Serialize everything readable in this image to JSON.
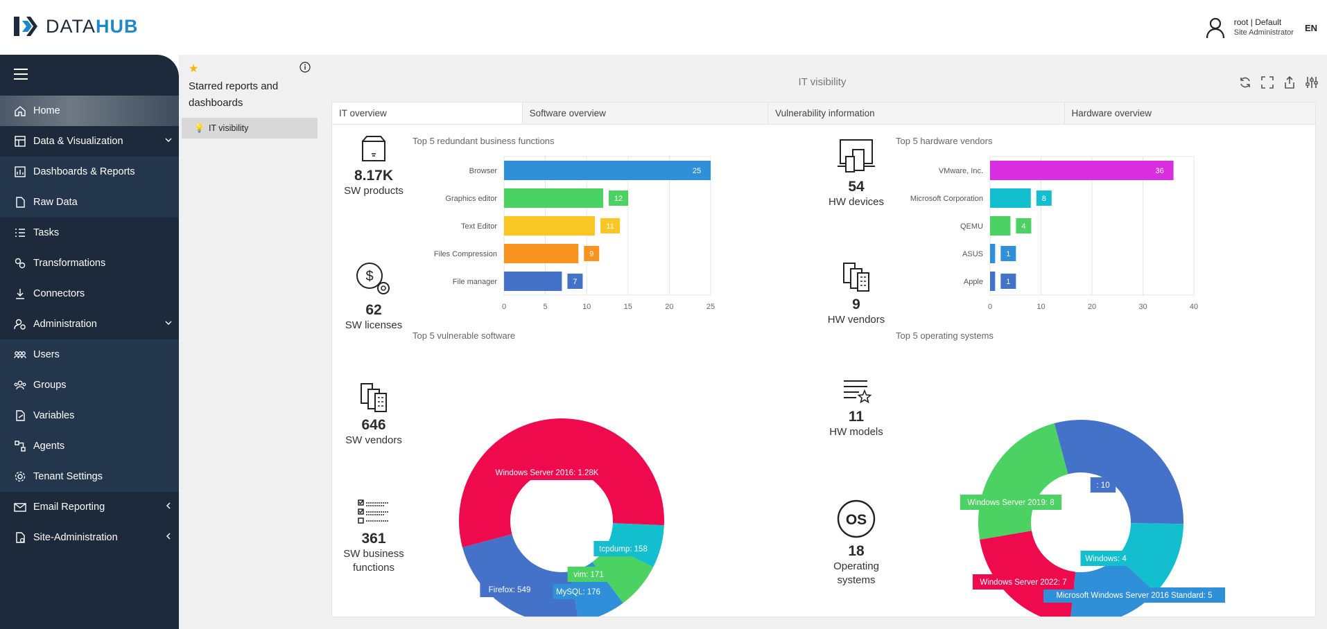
{
  "topbar": {
    "logo_text_a": "DATA",
    "logo_text_b": "HUB",
    "user_name": "root",
    "user_tenant": "| Default",
    "user_role": "Site Administrator",
    "language": "EN"
  },
  "sidebar": {
    "items": [
      {
        "label": "Home",
        "icon": "home-icon"
      },
      {
        "label": "Data & Visualization",
        "icon": "database-icon",
        "chevron": "down"
      },
      {
        "label": "Dashboards & Reports",
        "icon": "dashboard-icon"
      },
      {
        "label": "Raw Data",
        "icon": "file-icon"
      },
      {
        "label": "Tasks",
        "icon": "tasks-icon"
      },
      {
        "label": "Transformations",
        "icon": "transform-icon"
      },
      {
        "label": "Connectors",
        "icon": "download-icon"
      },
      {
        "label": "Administration",
        "icon": "admin-icon",
        "chevron": "down"
      },
      {
        "label": "Users",
        "icon": "users-icon"
      },
      {
        "label": "Groups",
        "icon": "groups-icon"
      },
      {
        "label": "Variables",
        "icon": "variables-icon"
      },
      {
        "label": "Agents",
        "icon": "agents-icon"
      },
      {
        "label": "Tenant Settings",
        "icon": "gear-icon"
      },
      {
        "label": "Email Reporting",
        "icon": "email-icon",
        "chevron": "left"
      },
      {
        "label": "Site-Administration",
        "icon": "site-admin-icon",
        "chevron": "left"
      }
    ]
  },
  "starred": {
    "title": "Starred reports and dashboards",
    "items": [
      {
        "label": "IT visibility"
      }
    ]
  },
  "main": {
    "title": "IT visibility",
    "tabs": [
      {
        "label": "IT overview"
      },
      {
        "label": "Software overview"
      },
      {
        "label": "Vulnerability information"
      },
      {
        "label": "Hardware overview"
      }
    ],
    "kpis": {
      "sw_products": {
        "value": "8.17K",
        "label": "SW products"
      },
      "sw_licenses": {
        "value": "62",
        "label": "SW licenses"
      },
      "sw_vendors": {
        "value": "646",
        "label": "SW vendors"
      },
      "sw_business_functions": {
        "value": "361",
        "label": "SW business functions"
      },
      "hw_devices": {
        "value": "54",
        "label": "HW devices"
      },
      "hw_vendors": {
        "value": "9",
        "label": "HW vendors"
      },
      "hw_models": {
        "value": "11",
        "label": "HW models"
      },
      "operating_systems": {
        "value": "18",
        "label": "Operating systems"
      }
    }
  },
  "chart_data": [
    {
      "type": "bar",
      "orientation": "horizontal",
      "title": "Top 5 redundant business functions",
      "categories": [
        "Browser",
        "Graphics editor",
        "Text Editor",
        "Files Compression",
        "File manager"
      ],
      "values": [
        25,
        12,
        11,
        9,
        7
      ],
      "colors": [
        "#2f8fd8",
        "#4cd263",
        "#f9c623",
        "#f7931e",
        "#4472c9"
      ],
      "xlim": [
        0,
        25
      ],
      "xticks": [
        0,
        5,
        10,
        15,
        20,
        25
      ],
      "grid": true
    },
    {
      "type": "bar",
      "orientation": "horizontal",
      "title": "Top 5 hardware vendors",
      "categories": [
        "VMware, Inc.",
        "Microsoft Corporation",
        "QEMU",
        "ASUS",
        "Apple"
      ],
      "values": [
        36,
        8,
        4,
        1,
        1
      ],
      "colors": [
        "#d92ee0",
        "#13bfcf",
        "#4cd263",
        "#2f8fd8",
        "#4472c9"
      ],
      "xlim": [
        0,
        40
      ],
      "xticks": [
        0,
        10,
        20,
        30,
        40
      ],
      "grid": true
    },
    {
      "type": "pie",
      "donut": true,
      "title": "Top 5 vulnerable software",
      "slices": [
        {
          "label": "Windows Server 2016",
          "value": 1280,
          "display": "Windows Server 2016: 1.28K",
          "color": "#ee0a4d"
        },
        {
          "label": "tcpdump",
          "value": 158,
          "display": "tcpdump: 158",
          "color": "#13bfcf"
        },
        {
          "label": "vim",
          "value": 171,
          "display": "vim: 171",
          "color": "#4cd263"
        },
        {
          "label": "MySQL",
          "value": 176,
          "display": "MySQL: 176",
          "color": "#2f8fd8"
        },
        {
          "label": "Firefox",
          "value": 549,
          "display": "Firefox: 549",
          "color": "#4472c9"
        }
      ]
    },
    {
      "type": "pie",
      "donut": true,
      "title": "Top 5 operating systems",
      "slices": [
        {
          "label": "",
          "value": 10,
          "display": ": 10",
          "color": "#4472c9"
        },
        {
          "label": "Windows",
          "value": 4,
          "display": "Windows: 4",
          "color": "#13bfcf"
        },
        {
          "label": "Microsoft Windows Server 2016 Standard",
          "value": 5,
          "display": "Microsoft Windows Server 2016 Standard: 5",
          "color": "#2f8fd8"
        },
        {
          "label": "Windows Server 2022",
          "value": 7,
          "display": "Windows Server 2022: 7",
          "color": "#ee0a4d"
        },
        {
          "label": "Windows Server 2019",
          "value": 8,
          "display": "Windows Server 2019: 8",
          "color": "#4cd263"
        }
      ]
    }
  ]
}
